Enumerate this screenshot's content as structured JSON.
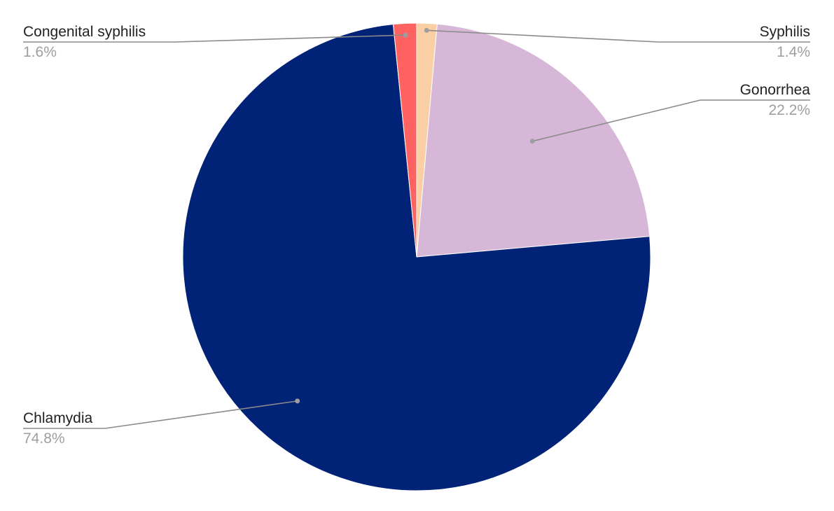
{
  "chart_data": {
    "type": "pie",
    "title": "",
    "start_angle_deg": 0,
    "direction": "clockwise",
    "slices": [
      {
        "label": "Syphilis",
        "value_label": "1.4%",
        "value": 1.4,
        "color": "#f9cfa3"
      },
      {
        "label": "Gonorrhea",
        "value_label": "22.2%",
        "value": 22.2,
        "color": "#d7b7d7"
      },
      {
        "label": "Chlamydia",
        "value_label": "74.8%",
        "value": 74.8,
        "color": "#002277"
      },
      {
        "label": "Congenital syphilis",
        "value_label": "1.6%",
        "value": 1.6,
        "color": "#ff6361"
      }
    ],
    "legend": "none",
    "labels": "outside-with-leader-lines"
  }
}
